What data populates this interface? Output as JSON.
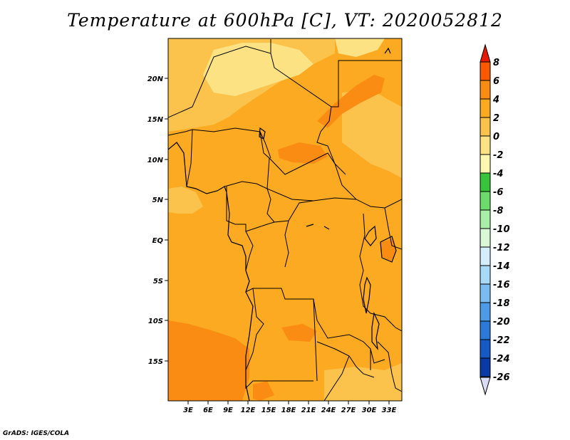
{
  "title": "Temperature at 600hPa [C], VT: 2020052812",
  "credit": "GrADS: IGES/COLA",
  "map": {
    "lat_labels": [
      "20N",
      "15N",
      "10N",
      "5N",
      "EQ",
      "5S",
      "10S",
      "15S"
    ],
    "lon_labels": [
      "3E",
      "6E",
      "9E",
      "12E",
      "15E",
      "18E",
      "21E",
      "24E",
      "27E",
      "30E",
      "33E"
    ],
    "background_color": "#fbaa22"
  },
  "colorbar": {
    "labels": [
      "8",
      "6",
      "4",
      "2",
      "0",
      "-2",
      "-4",
      "-6",
      "-8",
      "-10",
      "-12",
      "-14",
      "-16",
      "-18",
      "-20",
      "-22",
      "-24",
      "-26"
    ],
    "colors": [
      "#e61a00",
      "#f95a00",
      "#fb8c13",
      "#fbaa22",
      "#fbc34c",
      "#fde284",
      "#fef7b0",
      "#38c43a",
      "#6bdb6b",
      "#a9eea6",
      "#d8f8d6",
      "#d4eefb",
      "#a8d9f6",
      "#7bbcf0",
      "#4d9be6",
      "#2c7ad8",
      "#1659c4",
      "#0a3aa8",
      "#0a1a7a"
    ],
    "low_cap_color": "#dadcf5"
  }
}
